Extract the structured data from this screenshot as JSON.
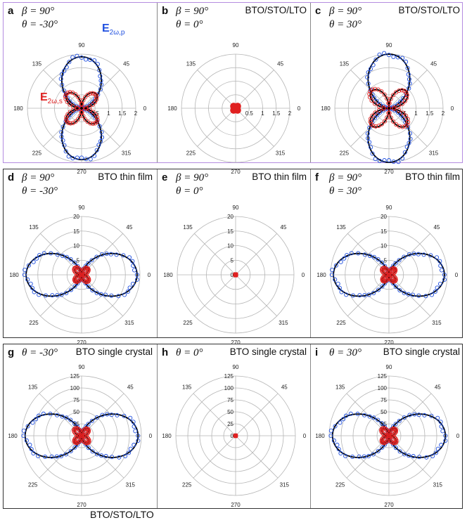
{
  "colors": {
    "p": "#2050e0",
    "s": "#e02020",
    "fit": "#000000",
    "grid": "#b5b5b5"
  },
  "footer": "BTO/STO/LTO",
  "legend": {
    "p_base": "E",
    "p_sub": "2ω,p",
    "s_base": "E",
    "s_sub": "2ω,s"
  },
  "rows": [
    {
      "panels": [
        {
          "label": "a",
          "beta": "β = 90°",
          "theta": "θ = -30°",
          "tag": ""
        },
        {
          "label": "b",
          "beta": "β = 90°",
          "theta": "θ = 0°",
          "tag": "BTO/STO/LTO"
        },
        {
          "label": "c",
          "beta": "β = 90°",
          "theta": "θ = 30°",
          "tag": "BTO/STO/LTO"
        }
      ]
    },
    {
      "panels": [
        {
          "label": "d",
          "beta": "β = 90°",
          "theta": "θ = -30°",
          "tag": "BTO thin film"
        },
        {
          "label": "e",
          "beta": "β = 90°",
          "theta": "θ = 0°",
          "tag": "BTO thin film"
        },
        {
          "label": "f",
          "beta": "β = 90°",
          "theta": "θ = 30°",
          "tag": "BTO thin film"
        }
      ]
    },
    {
      "panels": [
        {
          "label": "g",
          "beta": "",
          "theta": "θ = -30°",
          "tag": "BTO single crystal"
        },
        {
          "label": "h",
          "beta": "",
          "theta": "θ = 0°",
          "tag": "BTO single crystal"
        },
        {
          "label": "i",
          "beta": "",
          "theta": "θ = 30°",
          "tag": "BTO single crystal"
        }
      ]
    }
  ],
  "chart_data": [
    {
      "panel": "a",
      "type": "scatter",
      "polar": true,
      "rmax": 2,
      "rticks": [
        "0.5",
        "1",
        "1.5",
        "2"
      ],
      "angle_ticks": [
        "0",
        "45",
        "90",
        "135",
        "180",
        "225",
        "270",
        "315"
      ],
      "series": [
        {
          "name": "E2ω,p",
          "kind": "p",
          "shape": "vertical-lobes",
          "amp": 1.9,
          "tilt": 0
        },
        {
          "name": "E2ω,s",
          "kind": "s",
          "shape": "four-leaf",
          "amp": 0.75,
          "tilt": 0
        }
      ]
    },
    {
      "panel": "b",
      "type": "scatter",
      "polar": true,
      "rmax": 2,
      "rticks": [
        "0.5",
        "1",
        "1.5",
        "2"
      ],
      "angle_ticks": [
        "0",
        "45",
        "90",
        "135",
        "180",
        "225",
        "270",
        "315"
      ],
      "series": [
        {
          "kind": "p",
          "shape": "blob",
          "amp": 0.2,
          "tilt": 0
        },
        {
          "kind": "s",
          "shape": "blob",
          "amp": 0.22,
          "tilt": 0
        }
      ]
    },
    {
      "panel": "c",
      "type": "scatter",
      "polar": true,
      "rmax": 2,
      "rticks": [
        "0.5",
        "1",
        "1.5",
        "2"
      ],
      "angle_ticks": [
        "0",
        "45",
        "90",
        "135",
        "180",
        "225",
        "270",
        "315"
      ],
      "series": [
        {
          "kind": "p",
          "shape": "vertical-lobes",
          "amp": 2.0,
          "tilt": 0
        },
        {
          "kind": "s",
          "shape": "four-leaf",
          "amp": 0.9,
          "tilt": 0
        }
      ]
    },
    {
      "panel": "d",
      "type": "scatter",
      "polar": true,
      "rmax": 20,
      "rticks": [
        "0",
        "5",
        "10",
        "15",
        "20"
      ],
      "angle_ticks": [
        "0",
        "45",
        "90",
        "135",
        "180",
        "225",
        "270",
        "315"
      ],
      "series": [
        {
          "kind": "p",
          "shape": "horizontal-lobes",
          "amp": 19,
          "tilt": 0
        },
        {
          "kind": "s",
          "shape": "four-leaf",
          "amp": 3.2,
          "tilt": 0
        }
      ]
    },
    {
      "panel": "e",
      "type": "scatter",
      "polar": true,
      "rmax": 20,
      "rticks": [
        "0",
        "5",
        "10",
        "15",
        "20"
      ],
      "angle_ticks": [
        "0",
        "45",
        "90",
        "135",
        "180",
        "225",
        "270",
        "315"
      ],
      "series": [
        {
          "kind": "s",
          "shape": "blob",
          "amp": 0.9,
          "tilt": 0
        }
      ]
    },
    {
      "panel": "f",
      "type": "scatter",
      "polar": true,
      "rmax": 20,
      "rticks": [
        "0",
        "5",
        "10",
        "15",
        "20"
      ],
      "angle_ticks": [
        "0",
        "45",
        "90",
        "135",
        "180",
        "225",
        "270",
        "315"
      ],
      "series": [
        {
          "kind": "p",
          "shape": "horizontal-lobes",
          "amp": 19,
          "tilt": 0
        },
        {
          "kind": "s",
          "shape": "four-leaf",
          "amp": 3.0,
          "tilt": 0
        }
      ]
    },
    {
      "panel": "g",
      "type": "scatter",
      "polar": true,
      "rmax": 125,
      "rticks": [
        "0",
        "25",
        "50",
        "75",
        "100",
        "125"
      ],
      "angle_ticks": [
        "0",
        "45",
        "90",
        "135",
        "180",
        "225",
        "270",
        "315"
      ],
      "series": [
        {
          "kind": "p",
          "shape": "horizontal-lobes",
          "amp": 118,
          "tilt": 0
        },
        {
          "kind": "s",
          "shape": "four-leaf",
          "amp": 20,
          "tilt": 0
        }
      ]
    },
    {
      "panel": "h",
      "type": "scatter",
      "polar": true,
      "rmax": 125,
      "rticks": [
        "0",
        "25",
        "50",
        "75",
        "100",
        "125"
      ],
      "angle_ticks": [
        "0",
        "45",
        "90",
        "135",
        "180",
        "225",
        "270",
        "315"
      ],
      "series": [
        {
          "kind": "s",
          "shape": "blob",
          "amp": 5,
          "tilt": 0
        }
      ]
    },
    {
      "panel": "i",
      "type": "scatter",
      "polar": true,
      "rmax": 125,
      "rticks": [
        "0",
        "25",
        "50",
        "75",
        "100",
        "125"
      ],
      "angle_ticks": [
        "0",
        "45",
        "90",
        "135",
        "180",
        "225",
        "270",
        "315"
      ],
      "series": [
        {
          "kind": "p",
          "shape": "horizontal-lobes",
          "amp": 118,
          "tilt": 0
        },
        {
          "kind": "s",
          "shape": "four-leaf",
          "amp": 20,
          "tilt": 0
        }
      ]
    }
  ]
}
